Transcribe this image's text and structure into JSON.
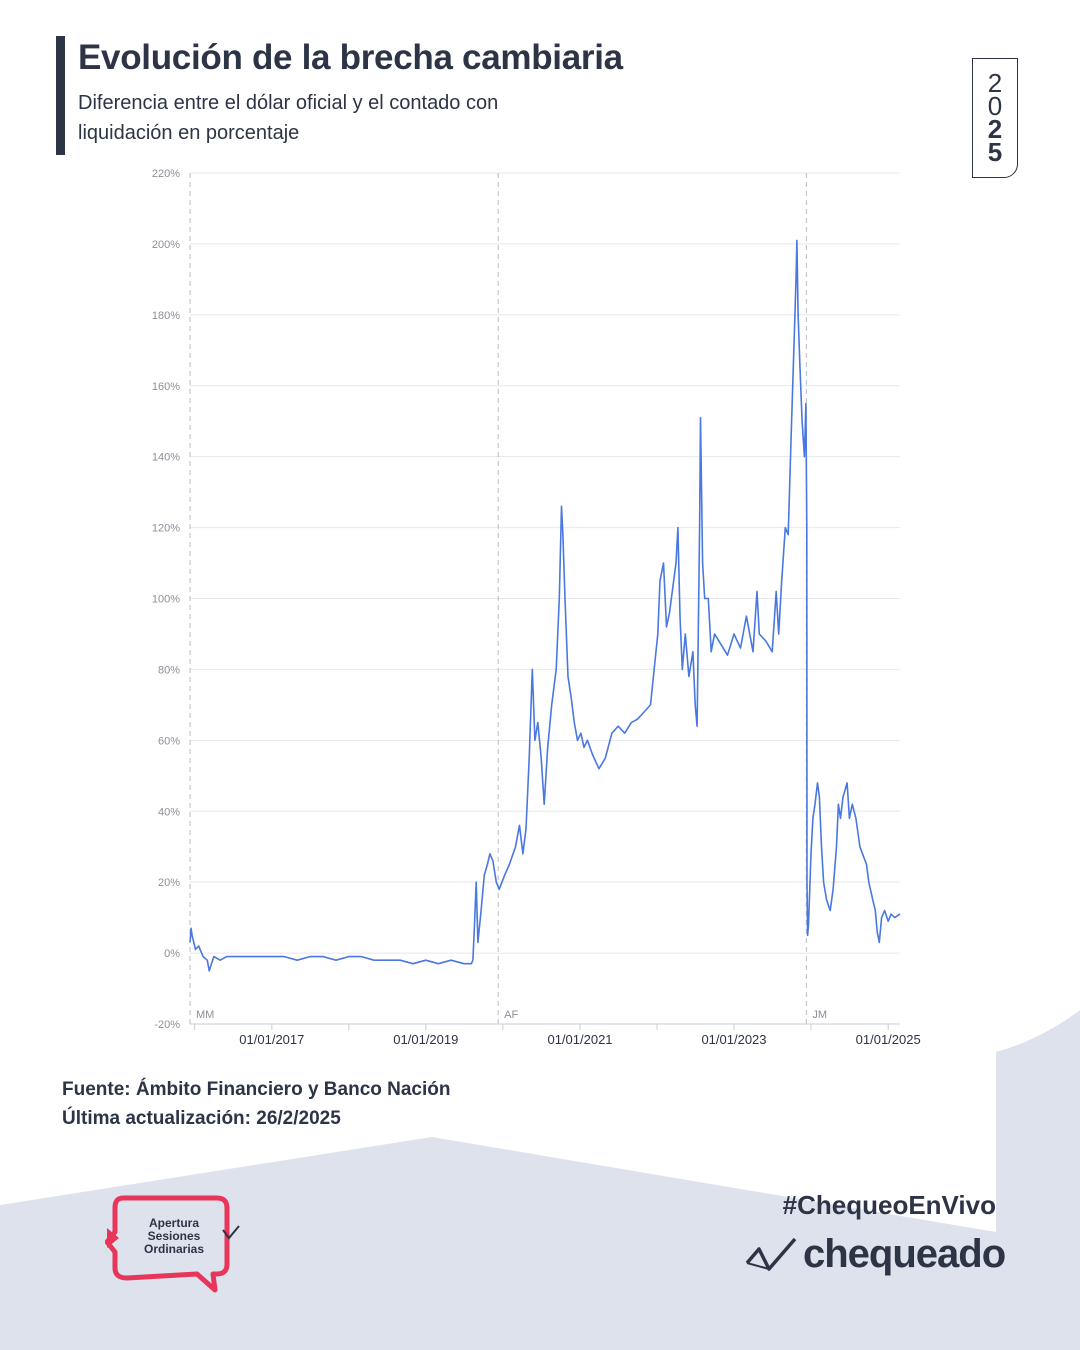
{
  "header": {
    "title": "Evolución de la brecha cambiaria",
    "subtitle": "Diferencia entre el dólar oficial y el contado con liquidación en porcentaje",
    "badge_digits": [
      "2",
      "0",
      "2",
      "5"
    ]
  },
  "footer": {
    "source": "Fuente: Ámbito Financiero y Banco Nación",
    "updated": "Última actualización: 26/2/2025",
    "hashtag": "#ChequeoEnVivo",
    "brand": "chequeado",
    "event_lines": [
      "Apertura",
      "Sesiones",
      "Ordinarias"
    ]
  },
  "colors": {
    "navy": "#2c3446",
    "series": "#4a78e0",
    "grid": "#e6e8ec",
    "marker": "#b8bcc4",
    "tick_text": "#8a8f99",
    "bg_shape": "#dde2ec",
    "accent_red": "#e8365a"
  },
  "chart_data": {
    "type": "line",
    "title": "",
    "xlabel": "",
    "ylabel": "",
    "x_range": [
      "2015-12-10",
      "2025-02-26"
    ],
    "ylim": [
      -20,
      220
    ],
    "y_ticks": [
      -20,
      0,
      20,
      40,
      60,
      80,
      100,
      120,
      140,
      160,
      180,
      200,
      220
    ],
    "y_tick_suffix": "%",
    "x_tick_dates": [
      "2017-01-01",
      "2019-01-01",
      "2021-01-01",
      "2023-01-01",
      "2025-01-01"
    ],
    "x_tick_labels": [
      "01/01/2017",
      "01/01/2019",
      "01/01/2021",
      "01/01/2023",
      "01/01/2025"
    ],
    "minor_tick_dates": [
      "2016-01-01",
      "2018-01-01",
      "2020-01-01",
      "2022-01-01",
      "2024-01-01"
    ],
    "grid": true,
    "markers": [
      {
        "date": "2015-12-10",
        "label": "MM"
      },
      {
        "date": "2019-12-10",
        "label": "AF"
      },
      {
        "date": "2023-12-10",
        "label": "JM"
      }
    ],
    "series": [
      {
        "points": [
          [
            "2015-12-10",
            3
          ],
          [
            "2015-12-15",
            7
          ],
          [
            "2015-12-20",
            5
          ],
          [
            "2016-01-05",
            1
          ],
          [
            "2016-01-20",
            2
          ],
          [
            "2016-02-10",
            -1
          ],
          [
            "2016-03-01",
            -2
          ],
          [
            "2016-03-10",
            -5
          ],
          [
            "2016-04-01",
            -1
          ],
          [
            "2016-05-01",
            -2
          ],
          [
            "2016-06-01",
            -1
          ],
          [
            "2016-07-01",
            -1
          ],
          [
            "2016-09-01",
            -1
          ],
          [
            "2016-11-01",
            -1
          ],
          [
            "2017-01-01",
            -1
          ],
          [
            "2017-03-01",
            -1
          ],
          [
            "2017-05-01",
            -2
          ],
          [
            "2017-07-01",
            -1
          ],
          [
            "2017-09-01",
            -1
          ],
          [
            "2017-11-01",
            -2
          ],
          [
            "2018-01-01",
            -1
          ],
          [
            "2018-03-01",
            -1
          ],
          [
            "2018-05-01",
            -2
          ],
          [
            "2018-07-01",
            -2
          ],
          [
            "2018-09-01",
            -2
          ],
          [
            "2018-11-01",
            -3
          ],
          [
            "2019-01-01",
            -2
          ],
          [
            "2019-03-01",
            -3
          ],
          [
            "2019-05-01",
            -2
          ],
          [
            "2019-07-01",
            -3
          ],
          [
            "2019-08-05",
            -3
          ],
          [
            "2019-08-12",
            -2
          ],
          [
            "2019-08-20",
            8
          ],
          [
            "2019-08-28",
            20
          ],
          [
            "2019-09-05",
            3
          ],
          [
            "2019-09-20",
            12
          ],
          [
            "2019-10-05",
            22
          ],
          [
            "2019-10-20",
            25
          ],
          [
            "2019-11-01",
            28
          ],
          [
            "2019-11-15",
            26
          ],
          [
            "2019-12-01",
            20
          ],
          [
            "2019-12-15",
            18
          ],
          [
            "2020-01-10",
            22
          ],
          [
            "2020-02-01",
            25
          ],
          [
            "2020-03-01",
            30
          ],
          [
            "2020-03-20",
            36
          ],
          [
            "2020-04-05",
            28
          ],
          [
            "2020-04-20",
            35
          ],
          [
            "2020-05-05",
            55
          ],
          [
            "2020-05-15",
            72
          ],
          [
            "2020-05-20",
            80
          ],
          [
            "2020-06-01",
            60
          ],
          [
            "2020-06-15",
            65
          ],
          [
            "2020-07-01",
            55
          ],
          [
            "2020-07-15",
            42
          ],
          [
            "2020-08-01",
            58
          ],
          [
            "2020-08-20",
            70
          ],
          [
            "2020-09-10",
            80
          ],
          [
            "2020-09-25",
            100
          ],
          [
            "2020-10-05",
            126
          ],
          [
            "2020-10-12",
            118
          ],
          [
            "2020-10-22",
            100
          ],
          [
            "2020-11-05",
            78
          ],
          [
            "2020-11-20",
            72
          ],
          [
            "2020-12-05",
            65
          ],
          [
            "2020-12-20",
            60
          ],
          [
            "2021-01-05",
            62
          ],
          [
            "2021-01-20",
            58
          ],
          [
            "2021-02-05",
            60
          ],
          [
            "2021-03-01",
            56
          ],
          [
            "2021-04-01",
            52
          ],
          [
            "2021-05-01",
            55
          ],
          [
            "2021-06-01",
            62
          ],
          [
            "2021-07-01",
            64
          ],
          [
            "2021-08-01",
            62
          ],
          [
            "2021-09-01",
            65
          ],
          [
            "2021-10-01",
            66
          ],
          [
            "2021-11-01",
            68
          ],
          [
            "2021-12-01",
            70
          ],
          [
            "2022-01-05",
            90
          ],
          [
            "2022-01-15",
            105
          ],
          [
            "2022-02-01",
            110
          ],
          [
            "2022-02-15",
            92
          ],
          [
            "2022-03-01",
            96
          ],
          [
            "2022-04-01",
            110
          ],
          [
            "2022-04-10",
            120
          ],
          [
            "2022-04-20",
            95
          ],
          [
            "2022-05-01",
            80
          ],
          [
            "2022-05-15",
            90
          ],
          [
            "2022-06-01",
            78
          ],
          [
            "2022-06-20",
            85
          ],
          [
            "2022-07-01",
            70
          ],
          [
            "2022-07-10",
            64
          ],
          [
            "2022-07-22",
            120
          ],
          [
            "2022-07-26",
            151
          ],
          [
            "2022-08-05",
            110
          ],
          [
            "2022-08-15",
            100
          ],
          [
            "2022-09-01",
            100
          ],
          [
            "2022-09-15",
            85
          ],
          [
            "2022-10-01",
            90
          ],
          [
            "2022-11-01",
            87
          ],
          [
            "2022-12-01",
            84
          ],
          [
            "2023-01-01",
            90
          ],
          [
            "2023-02-01",
            86
          ],
          [
            "2023-03-01",
            95
          ],
          [
            "2023-04-01",
            85
          ],
          [
            "2023-04-20",
            102
          ],
          [
            "2023-05-01",
            90
          ],
          [
            "2023-06-01",
            88
          ],
          [
            "2023-07-01",
            85
          ],
          [
            "2023-07-20",
            102
          ],
          [
            "2023-08-01",
            90
          ],
          [
            "2023-08-15",
            105
          ],
          [
            "2023-09-01",
            120
          ],
          [
            "2023-09-15",
            118
          ],
          [
            "2023-10-01",
            150
          ],
          [
            "2023-10-15",
            176
          ],
          [
            "2023-10-22",
            190
          ],
          [
            "2023-10-26",
            201
          ],
          [
            "2023-11-01",
            180
          ],
          [
            "2023-11-10",
            165
          ],
          [
            "2023-11-20",
            150
          ],
          [
            "2023-12-01",
            140
          ],
          [
            "2023-12-08",
            155
          ],
          [
            "2023-12-12",
            120
          ],
          [
            "2023-12-13",
            20
          ],
          [
            "2023-12-16",
            5
          ],
          [
            "2023-12-20",
            8
          ],
          [
            "2024-01-01",
            28
          ],
          [
            "2024-01-10",
            38
          ],
          [
            "2024-01-20",
            42
          ],
          [
            "2024-02-01",
            48
          ],
          [
            "2024-02-10",
            44
          ],
          [
            "2024-02-20",
            30
          ],
          [
            "2024-03-01",
            20
          ],
          [
            "2024-03-15",
            15
          ],
          [
            "2024-04-01",
            12
          ],
          [
            "2024-04-15",
            18
          ],
          [
            "2024-05-01",
            30
          ],
          [
            "2024-05-10",
            42
          ],
          [
            "2024-05-20",
            38
          ],
          [
            "2024-06-01",
            44
          ],
          [
            "2024-06-20",
            48
          ],
          [
            "2024-07-01",
            38
          ],
          [
            "2024-07-15",
            42
          ],
          [
            "2024-08-01",
            38
          ],
          [
            "2024-08-20",
            30
          ],
          [
            "2024-09-01",
            28
          ],
          [
            "2024-09-20",
            25
          ],
          [
            "2024-10-01",
            20
          ],
          [
            "2024-10-20",
            15
          ],
          [
            "2024-11-01",
            12
          ],
          [
            "2024-11-10",
            6
          ],
          [
            "2024-11-20",
            3
          ],
          [
            "2024-12-01",
            10
          ],
          [
            "2024-12-15",
            12
          ],
          [
            "2025-01-01",
            9
          ],
          [
            "2025-01-15",
            11
          ],
          [
            "2025-02-01",
            10
          ],
          [
            "2025-02-26",
            11
          ]
        ]
      }
    ]
  }
}
